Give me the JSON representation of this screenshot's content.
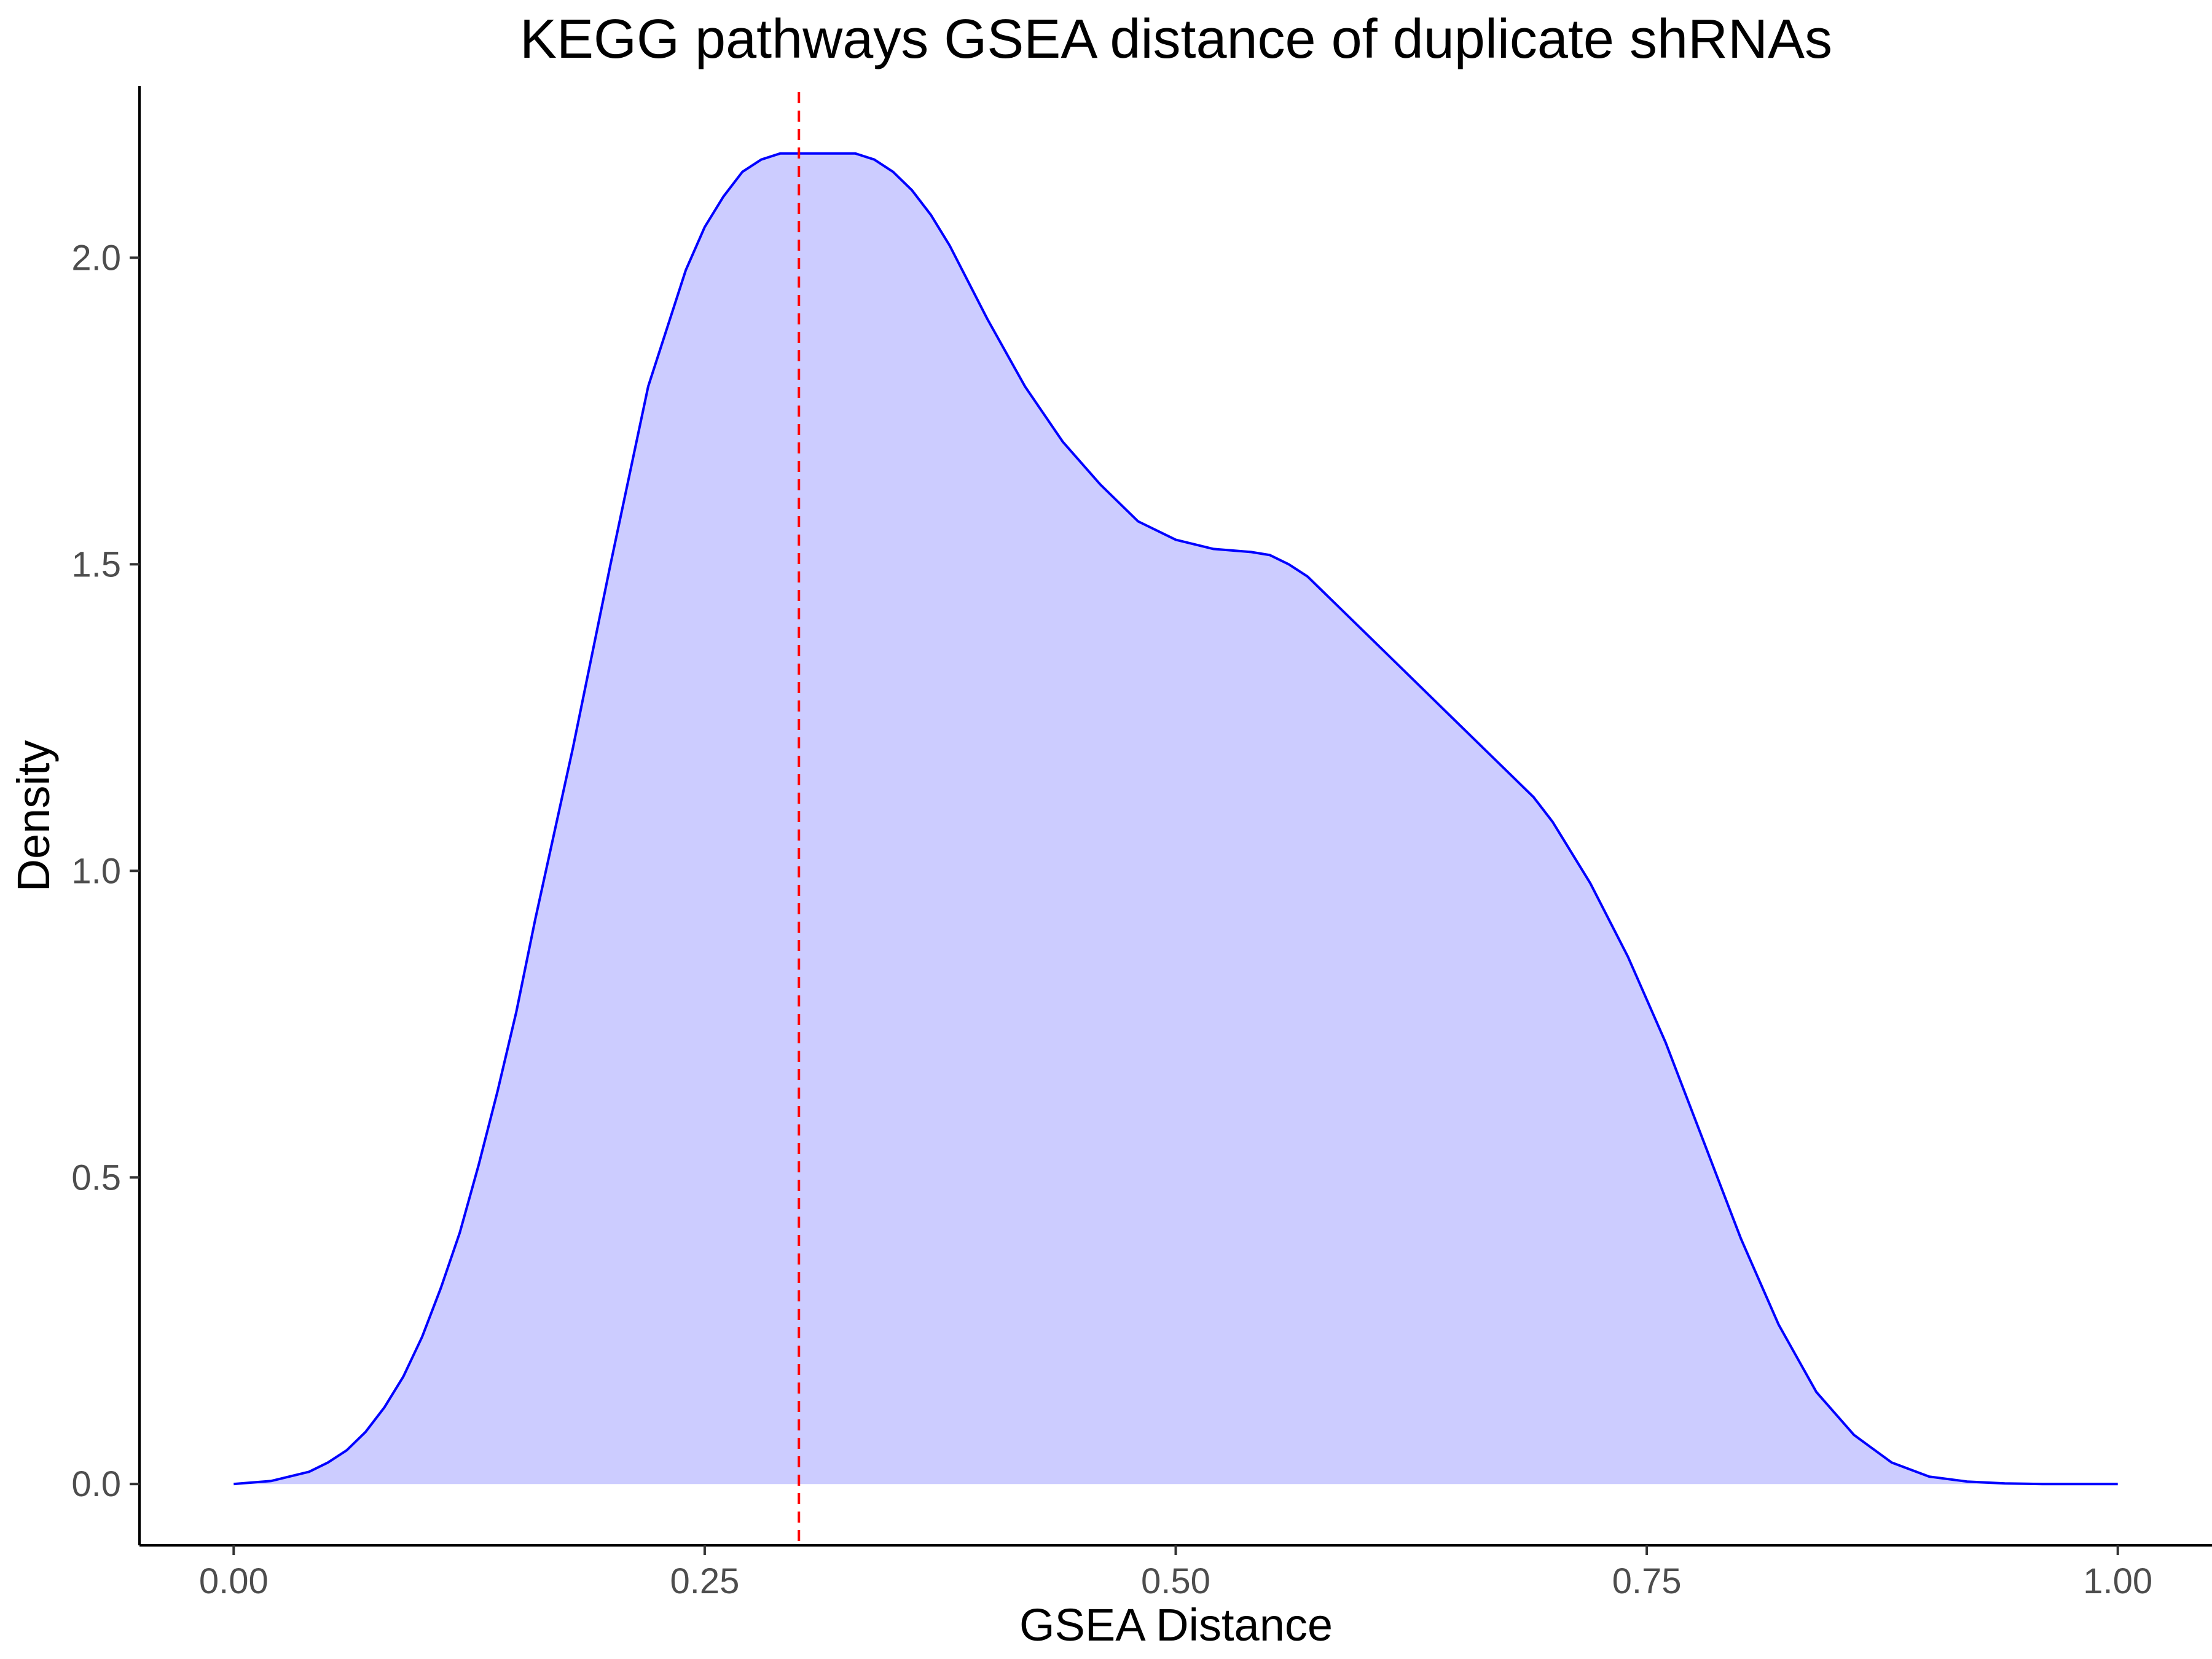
{
  "chart_data": {
    "type": "area",
    "title": "KEGG pathways GSEA distance of duplicate shRNAs",
    "xlabel": "GSEA Distance",
    "ylabel": "Density",
    "xlim": [
      -0.05,
      1.05
    ],
    "ylim": [
      -0.1,
      2.28
    ],
    "x_ticks": [
      0.0,
      0.25,
      0.5,
      0.75,
      1.0
    ],
    "x_tick_labels": [
      "0.00",
      "0.25",
      "0.50",
      "0.75",
      "1.00"
    ],
    "y_ticks": [
      0.0,
      0.5,
      1.0,
      1.5,
      2.0
    ],
    "y_tick_labels": [
      "0.0",
      "0.5",
      "1.0",
      "1.5",
      "2.0"
    ],
    "grid": false,
    "legend": "none",
    "reference_line": {
      "x": 0.3,
      "style": "dashed",
      "color": "#ff0000"
    },
    "series": [
      {
        "line_color": "#0000ff",
        "fill_color": "#ccccff",
        "x": [
          0.0,
          0.02,
          0.04,
          0.05,
          0.06,
          0.07,
          0.08,
          0.09,
          0.1,
          0.11,
          0.12,
          0.13,
          0.14,
          0.15,
          0.16,
          0.17,
          0.18,
          0.2,
          0.22,
          0.24,
          0.25,
          0.26,
          0.27,
          0.28,
          0.29,
          0.3,
          0.31,
          0.32,
          0.33,
          0.34,
          0.35,
          0.36,
          0.37,
          0.38,
          0.39,
          0.4,
          0.42,
          0.44,
          0.46,
          0.48,
          0.5,
          0.52,
          0.54,
          0.55,
          0.56,
          0.57,
          0.58,
          0.6,
          0.62,
          0.64,
          0.66,
          0.68,
          0.69,
          0.7,
          0.72,
          0.74,
          0.76,
          0.78,
          0.8,
          0.82,
          0.84,
          0.86,
          0.88,
          0.9,
          0.92,
          0.94,
          0.96,
          0.98,
          1.0
        ],
        "y": [
          0.0,
          0.005,
          0.02,
          0.035,
          0.055,
          0.085,
          0.125,
          0.175,
          0.24,
          0.32,
          0.41,
          0.52,
          0.64,
          0.77,
          0.92,
          1.06,
          1.2,
          1.5,
          1.79,
          1.98,
          2.05,
          2.1,
          2.14,
          2.16,
          2.17,
          2.17,
          2.17,
          2.17,
          2.17,
          2.16,
          2.14,
          2.11,
          2.07,
          2.02,
          1.96,
          1.9,
          1.79,
          1.7,
          1.63,
          1.57,
          1.54,
          1.525,
          1.52,
          1.515,
          1.5,
          1.48,
          1.45,
          1.39,
          1.33,
          1.27,
          1.21,
          1.15,
          1.12,
          1.08,
          0.98,
          0.86,
          0.72,
          0.56,
          0.4,
          0.26,
          0.15,
          0.08,
          0.035,
          0.012,
          0.004,
          0.001,
          0.0,
          0.0,
          0.0
        ]
      }
    ]
  }
}
